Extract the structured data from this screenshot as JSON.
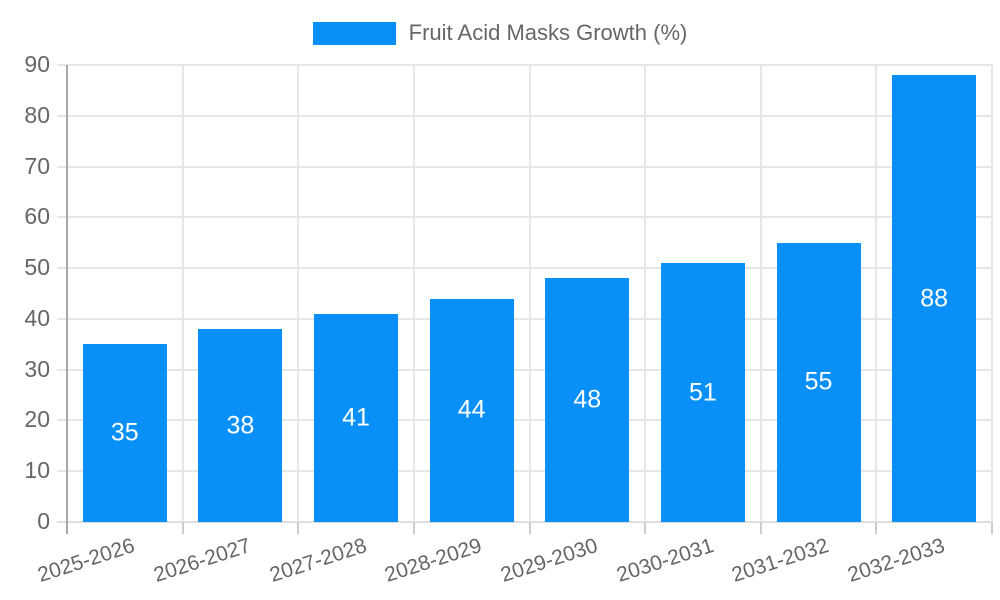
{
  "legend": {
    "label": "Fruit Acid Masks Growth (%)"
  },
  "colors": {
    "bar": "#0990f8",
    "grid": "#e6e6e6",
    "axis_y": "#a7a7a7",
    "axis_x": "#dedede",
    "tick": "#cccccc",
    "text": "#666666",
    "value_label": "#ffffff"
  },
  "chart_data": {
    "type": "bar",
    "title": "Fruit Acid Masks Growth (%)",
    "categories": [
      "2025-2026",
      "2026-2027",
      "2027-2028",
      "2028-2029",
      "2029-2030",
      "2030-2031",
      "2031-2032",
      "2032-2033"
    ],
    "values": [
      35,
      38,
      41,
      44,
      48,
      51,
      55,
      88
    ],
    "series_name": "Fruit Acid Masks Growth (%)",
    "xlabel": "",
    "ylabel": "",
    "ylim": [
      0,
      90
    ],
    "ytick_step": 10,
    "ytick_labels": [
      "0",
      "10",
      "20",
      "30",
      "40",
      "50",
      "60",
      "70",
      "80",
      "90"
    ],
    "grid": true,
    "legend_position": "top",
    "value_labels": "inside-center",
    "x_label_rotation_deg": -18
  }
}
